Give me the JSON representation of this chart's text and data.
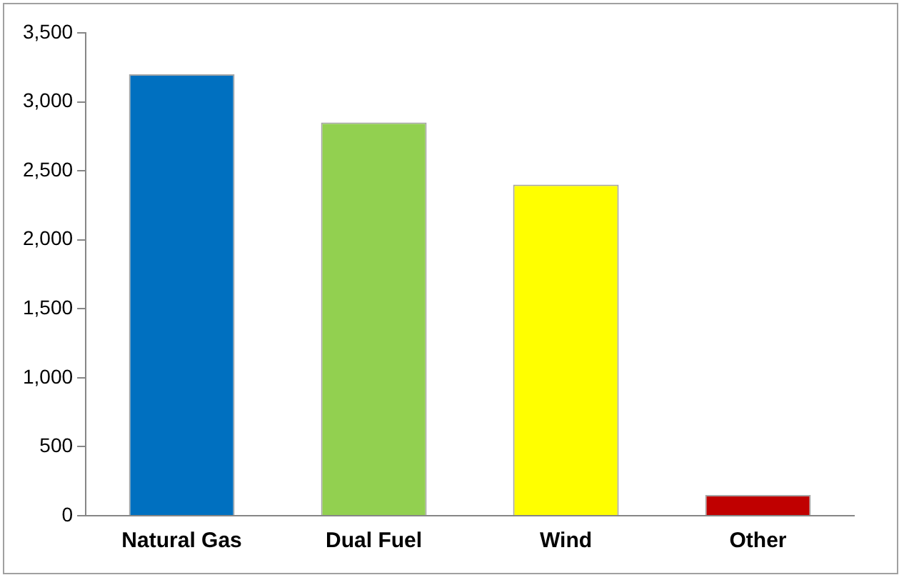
{
  "chart_data": {
    "type": "bar",
    "categories": [
      "Natural Gas",
      "Dual Fuel",
      "Wind",
      "Other"
    ],
    "values": [
      3200,
      2850,
      2400,
      150
    ],
    "colors": [
      "#0070c0",
      "#92d050",
      "#ffff00",
      "#c00000"
    ],
    "ylim": [
      0,
      3500
    ],
    "yticks": [
      {
        "value": 0,
        "label": "0"
      },
      {
        "value": 500,
        "label": "500"
      },
      {
        "value": 1000,
        "label": "1,000"
      },
      {
        "value": 1500,
        "label": "1,500"
      },
      {
        "value": 2000,
        "label": "2,000"
      },
      {
        "value": 2500,
        "label": "2,500"
      },
      {
        "value": 3000,
        "label": "3,000"
      },
      {
        "value": 3500,
        "label": "3,500"
      }
    ],
    "grid": false,
    "legend": false
  }
}
